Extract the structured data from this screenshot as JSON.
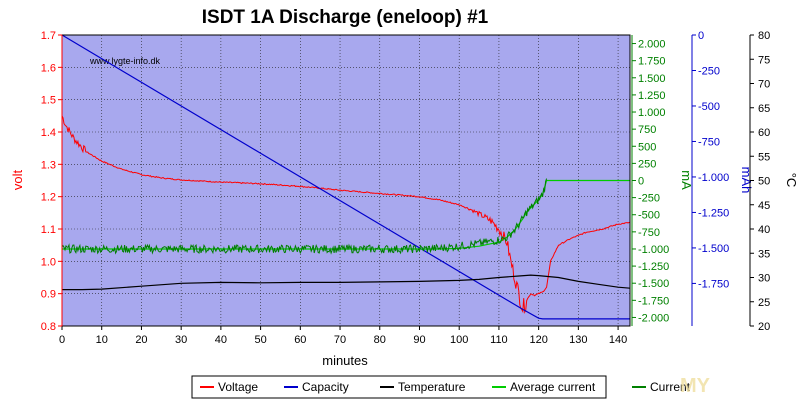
{
  "chart_data": {
    "type": "line",
    "title": "ISDT 1A Discharge (eneloop) #1",
    "watermark": "www.lygte-info.dk",
    "corner_watermark": "MY",
    "xlabel": "minutes",
    "xlim": [
      0,
      143
    ],
    "x_ticks": [
      0,
      10,
      20,
      30,
      40,
      50,
      60,
      70,
      80,
      90,
      100,
      110,
      120,
      130,
      140
    ],
    "plot_background": "#a8a8ee",
    "grid": true,
    "legend_position": "bottom",
    "axes": {
      "volt": {
        "label": "volt",
        "color": "#ff0000",
        "side": "left",
        "range": [
          0.8,
          1.7
        ],
        "ticks": [
          0.8,
          0.9,
          1.0,
          1.1,
          1.2,
          1.3,
          1.4,
          1.5,
          1.6,
          1.7
        ],
        "tick_labels": [
          "0.8",
          "0.9",
          "1.0",
          "1.1",
          "1.2",
          "1.3",
          "1.4",
          "1.5",
          "1.6",
          "1.7"
        ]
      },
      "mA": {
        "label": "mA",
        "color": "#008000",
        "side": "right",
        "range": [
          -2125,
          2125
        ],
        "ticks": [
          2000,
          1750,
          1500,
          1250,
          1000,
          750,
          500,
          250,
          0,
          -250,
          -500,
          -750,
          -1000,
          -1250,
          -1500,
          -1750,
          -2000
        ],
        "tick_labels": [
          "2.000",
          "1.750",
          "1.500",
          "1.250",
          "1.000",
          "750",
          "500",
          "250",
          "0",
          "-250",
          "-500",
          "-750",
          "-1.000",
          "-1.250",
          "-1.500",
          "-1.750",
          "-2.000"
        ]
      },
      "mAh": {
        "label": "mAh",
        "color": "#0000cc",
        "side": "right",
        "range": [
          -2050,
          0
        ],
        "ticks": [
          0,
          -250,
          -500,
          -750,
          -1000,
          -1250,
          -1500,
          -1750
        ],
        "tick_labels": [
          "0",
          "-250",
          "-500",
          "-750",
          "-1.000",
          "-1.250",
          "-1.500",
          "-1.750"
        ]
      },
      "temp": {
        "label": "°C",
        "color": "#000000",
        "side": "right",
        "range": [
          20,
          80
        ],
        "ticks": [
          20,
          25,
          30,
          35,
          40,
          45,
          50,
          55,
          60,
          65,
          70,
          75,
          80
        ],
        "tick_labels": [
          "20",
          "25",
          "30",
          "35",
          "40",
          "45",
          "50",
          "55",
          "60",
          "65",
          "70",
          "75",
          "80"
        ]
      }
    },
    "series": [
      {
        "name": "Voltage",
        "axis": "volt",
        "color": "#ff0000",
        "noise": 0.012,
        "x": [
          0,
          1,
          3,
          6,
          10,
          15,
          20,
          25,
          30,
          40,
          50,
          60,
          70,
          80,
          90,
          95,
          100,
          103,
          106,
          108,
          110,
          112,
          113,
          114,
          115,
          116,
          117,
          118,
          119,
          120,
          121,
          122,
          123,
          125,
          128,
          132,
          136,
          140,
          143
        ],
        "y": [
          1.45,
          1.42,
          1.38,
          1.34,
          1.31,
          1.285,
          1.268,
          1.258,
          1.252,
          1.245,
          1.24,
          1.232,
          1.22,
          1.21,
          1.2,
          1.19,
          1.175,
          1.16,
          1.14,
          1.125,
          1.1,
          1.06,
          1.0,
          0.95,
          0.9,
          0.855,
          0.88,
          0.9,
          0.895,
          0.9,
          0.905,
          0.92,
          1.0,
          1.05,
          1.07,
          1.09,
          1.1,
          1.115,
          1.12
        ]
      },
      {
        "name": "Capacity",
        "axis": "mAh",
        "color": "#0000cc",
        "noise": 0,
        "x": [
          0,
          116,
          120,
          121,
          143
        ],
        "y": [
          0,
          -1933,
          -1995,
          -2000,
          -2000
        ]
      },
      {
        "name": "Temperature",
        "axis": "temp",
        "color": "#000000",
        "noise": 0,
        "x": [
          0,
          5,
          10,
          20,
          30,
          40,
          50,
          60,
          70,
          80,
          90,
          100,
          105,
          110,
          115,
          118,
          120,
          125,
          130,
          135,
          140,
          143
        ],
        "y": [
          27.5,
          27.5,
          27.6,
          28.2,
          28.8,
          29.0,
          28.9,
          29.0,
          29.0,
          29.1,
          29.2,
          29.4,
          29.6,
          30.0,
          30.3,
          30.5,
          30.4,
          30.0,
          29.2,
          28.6,
          28.0,
          27.8
        ]
      },
      {
        "name": "Average current",
        "axis": "mA",
        "color": "#00cc00",
        "noise": 0,
        "x": [
          0,
          95,
          100,
          105,
          110,
          112,
          114,
          116,
          117,
          118,
          119,
          120,
          121,
          122,
          143
        ],
        "y": [
          -1000,
          -1000,
          -990,
          -960,
          -900,
          -830,
          -720,
          -560,
          -460,
          -400,
          -340,
          -280,
          -200,
          0,
          0
        ]
      },
      {
        "name": "Current",
        "axis": "mA",
        "color": "#008000",
        "noise": 60,
        "x": [
          0,
          90,
          95,
          100,
          105,
          110,
          112,
          114,
          116,
          117,
          118,
          119,
          120,
          121,
          122
        ],
        "y": [
          -1000,
          -1000,
          -990,
          -960,
          -920,
          -870,
          -830,
          -720,
          -560,
          -460,
          -400,
          -340,
          -280,
          -200,
          0
        ]
      }
    ]
  }
}
